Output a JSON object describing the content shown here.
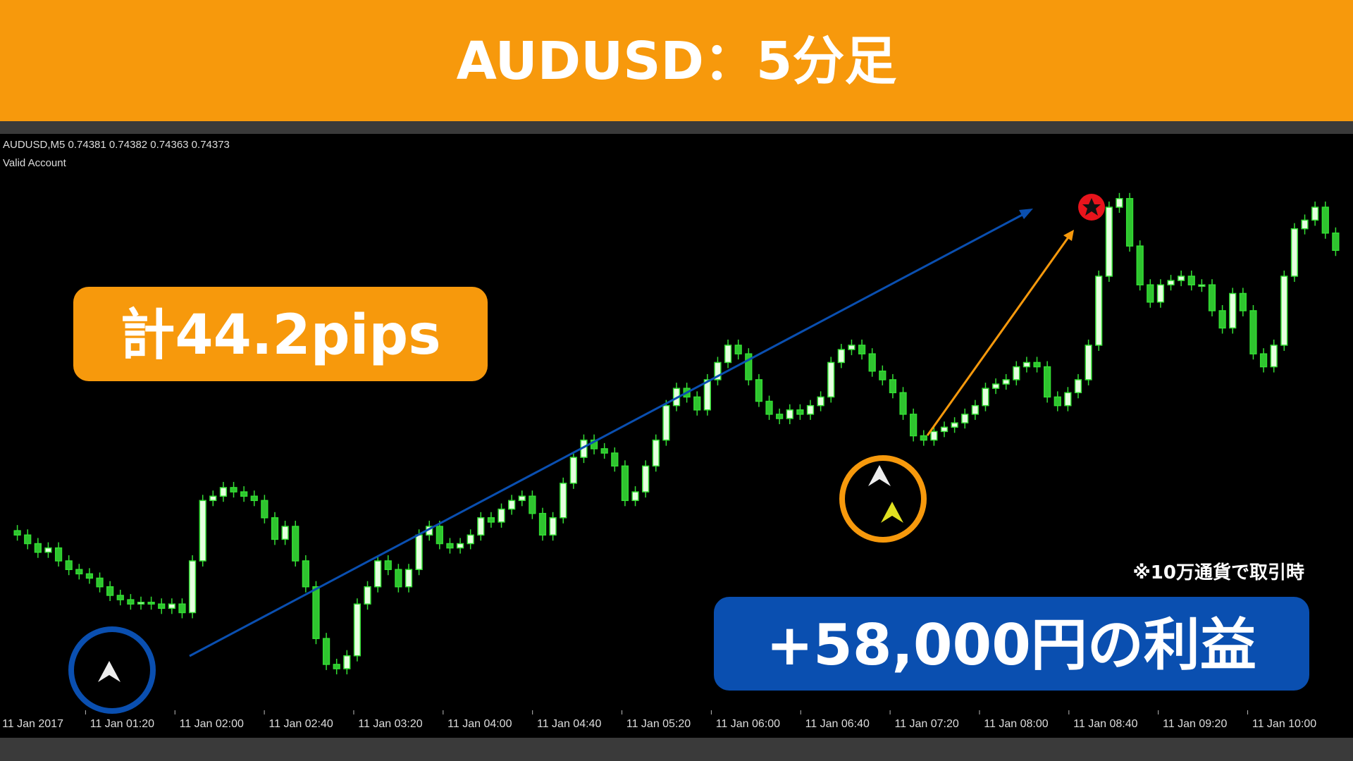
{
  "header": {
    "title": "AUDUSD：5分足"
  },
  "chart_data": {
    "type": "candlestick",
    "symbol_line": "AUDUSD,M5  0.74381 0.74382 0.74363 0.74373",
    "account": "Valid Account",
    "ylim": [
      0.74,
      0.7466
    ],
    "up_color": "#e6ffe0",
    "down_color": "#2fc42f",
    "edge_color": "#33dd33",
    "x_labels": [
      "11 Jan 2017",
      "11 Jan 01:20",
      "11 Jan 02:00",
      "11 Jan 02:40",
      "11 Jan 03:20",
      "11 Jan 04:00",
      "11 Jan 04:40",
      "11 Jan 05:20",
      "11 Jan 06:00",
      "11 Jan 06:40",
      "11 Jan 07:20",
      "11 Jan 08:00",
      "11 Jan 08:40",
      "11 Jan 09:20",
      "11 Jan 10:00"
    ],
    "values": [
      0.742,
      0.74195,
      0.74185,
      0.74175,
      0.7418,
      0.74165,
      0.74155,
      0.7415,
      0.74145,
      0.74135,
      0.74125,
      0.7412,
      0.74115,
      0.74117,
      0.74115,
      0.7411,
      0.74115,
      0.74105,
      0.74165,
      0.74235,
      0.7424,
      0.7425,
      0.74245,
      0.7424,
      0.74235,
      0.74215,
      0.7419,
      0.74205,
      0.74165,
      0.74135,
      0.74075,
      0.74045,
      0.7404,
      0.74055,
      0.74115,
      0.74135,
      0.74165,
      0.74155,
      0.74135,
      0.74155,
      0.74195,
      0.74205,
      0.74185,
      0.7418,
      0.74185,
      0.74195,
      0.74215,
      0.7421,
      0.74225,
      0.74235,
      0.7424,
      0.7422,
      0.74195,
      0.74215,
      0.74255,
      0.74285,
      0.74305,
      0.74295,
      0.7429,
      0.74275,
      0.74235,
      0.74245,
      0.74275,
      0.74305,
      0.74345,
      0.74365,
      0.74355,
      0.7434,
      0.74375,
      0.74395,
      0.74415,
      0.74405,
      0.74375,
      0.7435,
      0.74335,
      0.7433,
      0.7434,
      0.74335,
      0.74345,
      0.74355,
      0.74395,
      0.7441,
      0.74415,
      0.74405,
      0.74385,
      0.74375,
      0.7436,
      0.74335,
      0.7431,
      0.74305,
      0.74315,
      0.7432,
      0.74325,
      0.74335,
      0.74345,
      0.74365,
      0.7437,
      0.74375,
      0.7439,
      0.74395,
      0.7439,
      0.74355,
      0.74345,
      0.7436,
      0.74375,
      0.74415,
      0.74495,
      0.74575,
      0.74585,
      0.7453,
      0.74485,
      0.74465,
      0.74485,
      0.7449,
      0.74495,
      0.74485,
      0.74485,
      0.74455,
      0.74435,
      0.74475,
      0.74455,
      0.74405,
      0.7439,
      0.74415,
      0.74495,
      0.7455,
      0.7456,
      0.74575,
      0.74545,
      0.74525
    ]
  },
  "callouts": {
    "pips": "計44.2pips",
    "profit": "+58,000円の利益",
    "note": "※10万通貨で取引時"
  }
}
